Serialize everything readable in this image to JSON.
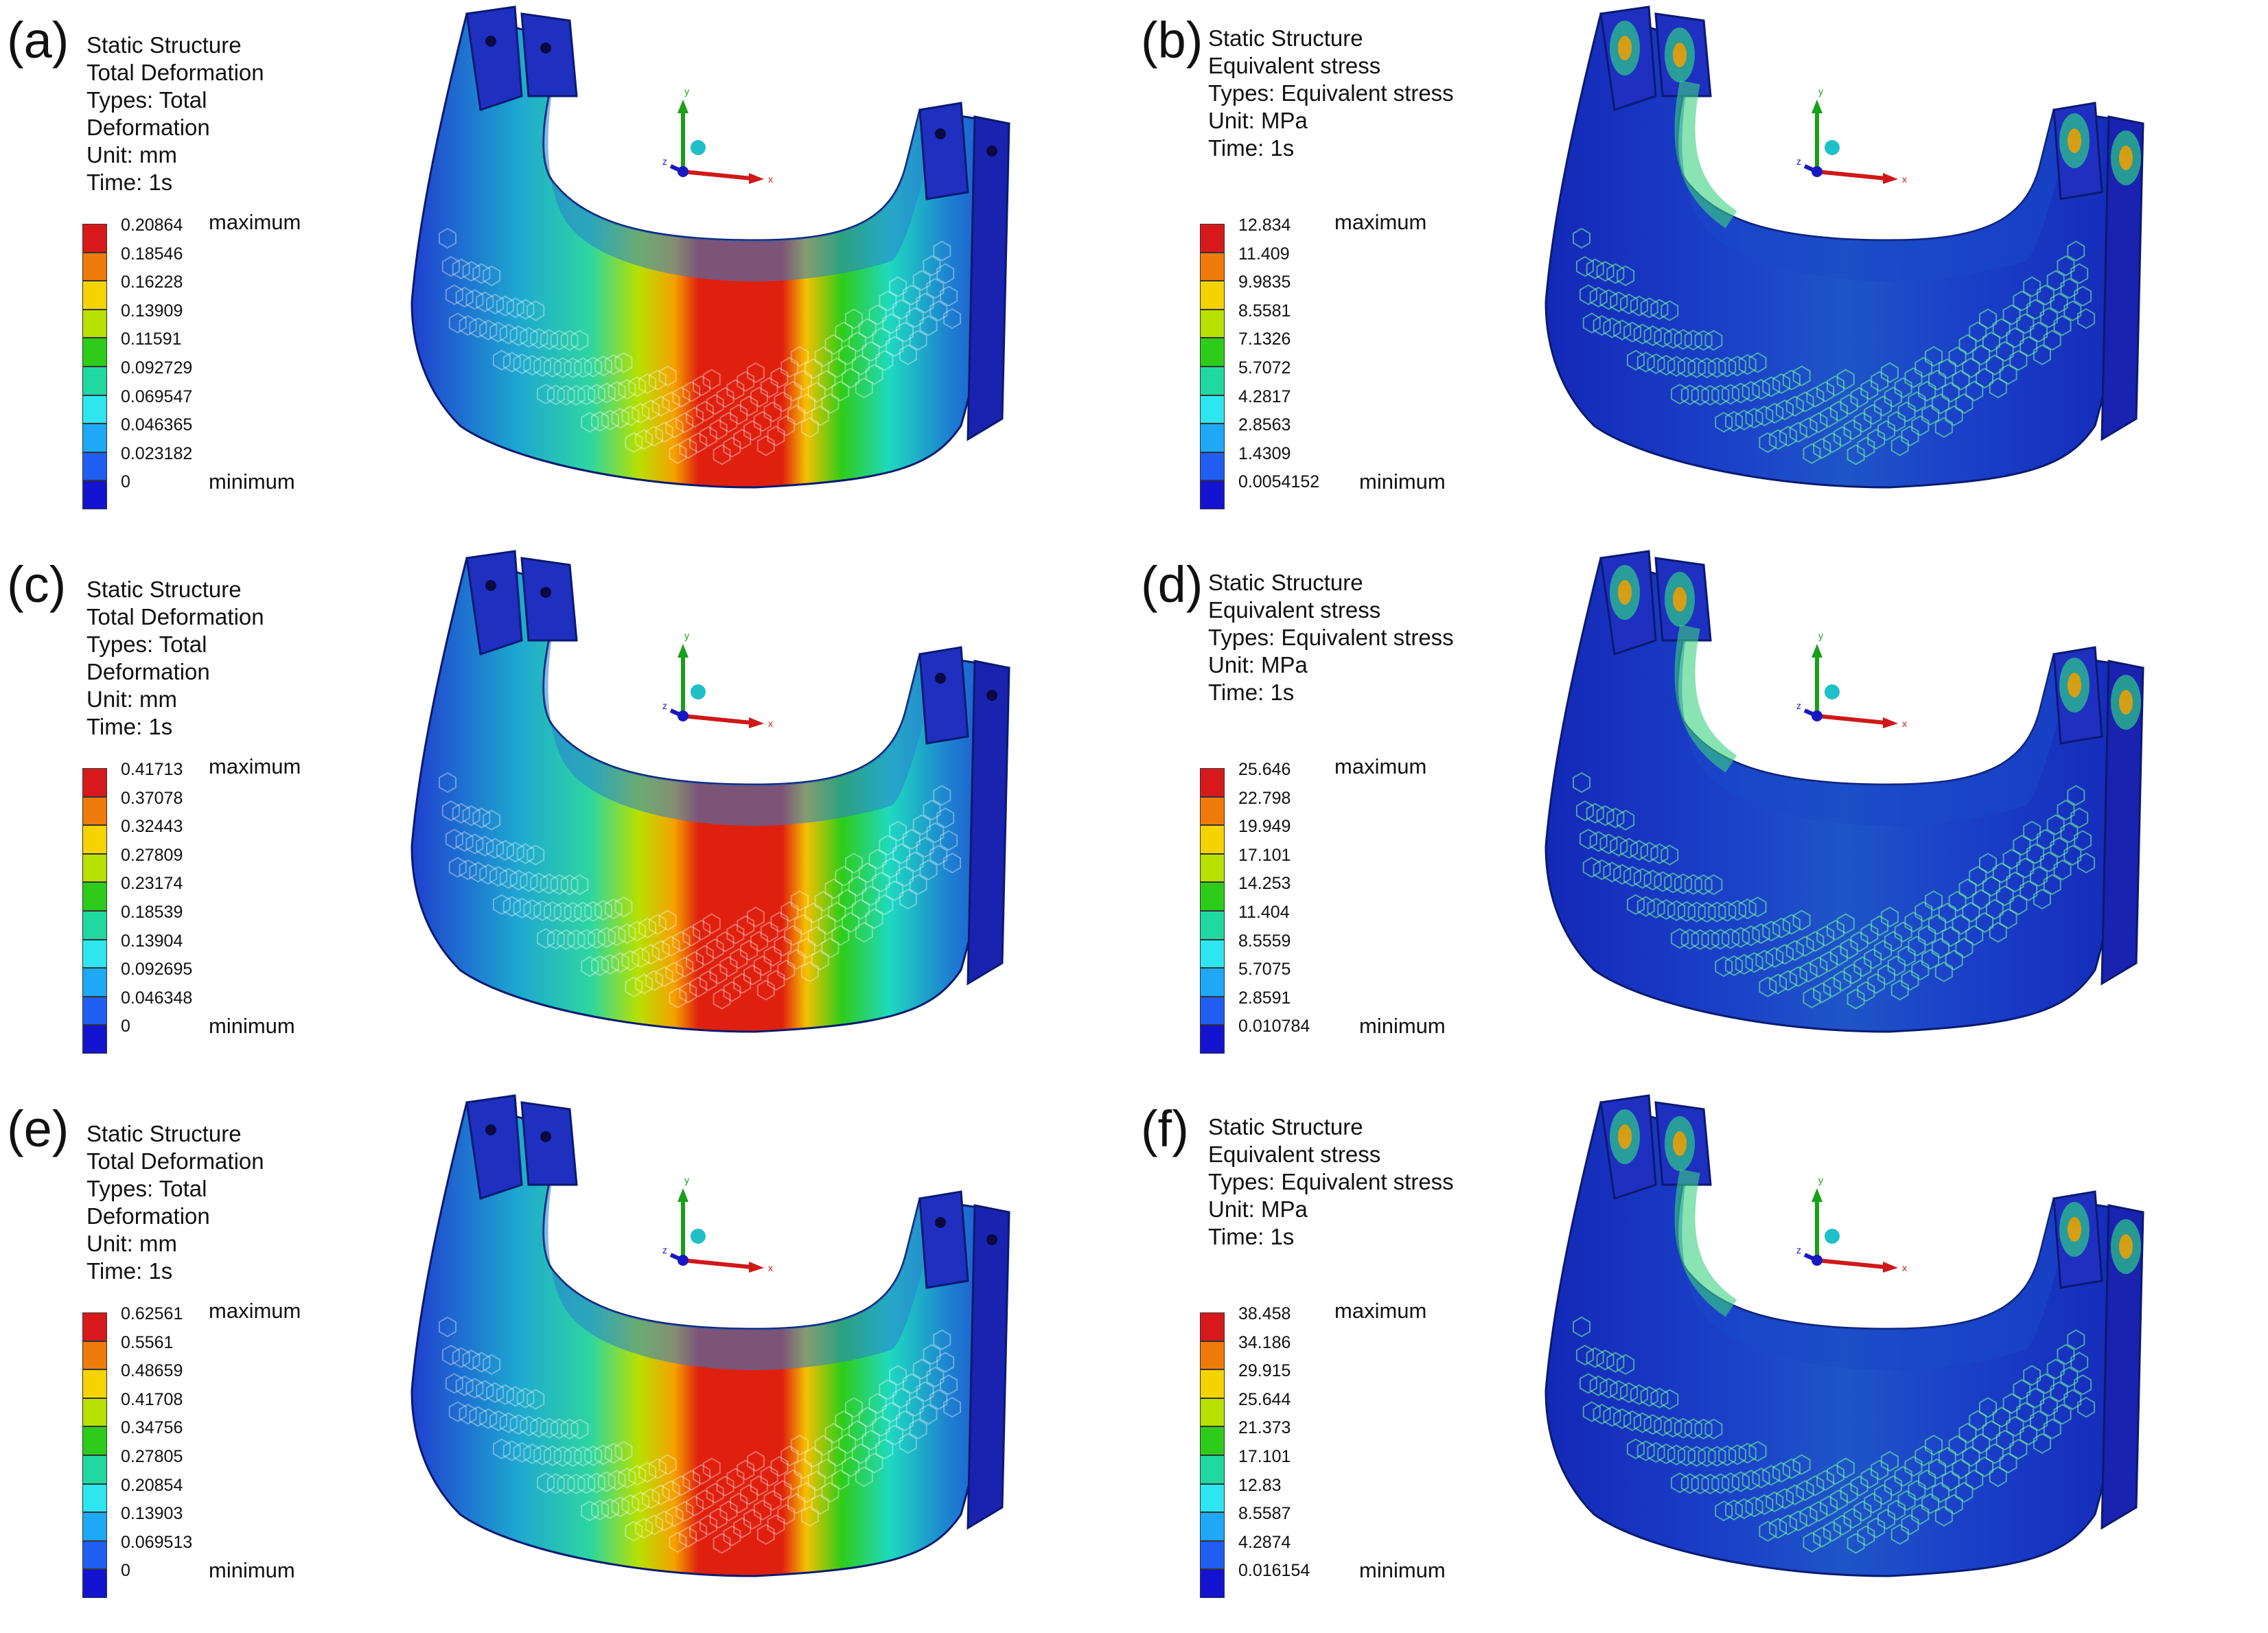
{
  "panels": [
    {
      "letter": "(a)",
      "title_lines": [
        "Static Structure",
        "Total Deformation",
        "Types: Total",
        "Deformation",
        "Unit: mm",
        "Time: 1s"
      ],
      "ticks": [
        "0.20864",
        "0.18546",
        "0.16228",
        "0.13909",
        "0.11591",
        "0.092729",
        "0.069547",
        "0.046365",
        "0.023182",
        "0"
      ],
      "max_label": "maximum",
      "min_label": "minimum",
      "kind": "deformation"
    },
    {
      "letter": "(b)",
      "title_lines": [
        "Static Structure",
        "Equivalent stress",
        "Types: Equivalent stress",
        "Unit: MPa",
        "Time: 1s"
      ],
      "ticks": [
        "12.834",
        "11.409",
        "9.9835",
        "8.5581",
        "7.1326",
        "5.7072",
        "4.2817",
        "2.8563",
        "1.4309",
        "0.0054152"
      ],
      "max_label": "maximum",
      "min_label": "minimum",
      "kind": "stress"
    },
    {
      "letter": "(c)",
      "title_lines": [
        "Static Structure",
        "Total Deformation",
        "Types: Total",
        "Deformation",
        "Unit: mm",
        "Time: 1s"
      ],
      "ticks": [
        "0.41713",
        "0.37078",
        "0.32443",
        "0.27809",
        "0.23174",
        "0.18539",
        "0.13904",
        "0.092695",
        "0.046348",
        "0"
      ],
      "max_label": "maximum",
      "min_label": "minimum",
      "kind": "deformation"
    },
    {
      "letter": "(d)",
      "title_lines": [
        "Static Structure",
        "Equivalent stress",
        "Types: Equivalent stress",
        "Unit: MPa",
        "Time: 1s"
      ],
      "ticks": [
        "25.646",
        "22.798",
        "19.949",
        "17.101",
        "14.253",
        "11.404",
        "8.5559",
        "5.7075",
        "2.8591",
        "0.010784"
      ],
      "max_label": "maximum",
      "min_label": "minimum",
      "kind": "stress"
    },
    {
      "letter": "(e)",
      "title_lines": [
        "Static Structure",
        "Total Deformation",
        "Types: Total",
        "Deformation",
        "Unit: mm",
        "Time: 1s"
      ],
      "ticks": [
        "0.62561",
        "0.5561",
        "0.48659",
        "0.41708",
        "0.34756",
        "0.27805",
        "0.20854",
        "0.13903",
        "0.069513",
        "0"
      ],
      "max_label": "maximum",
      "min_label": "minimum",
      "kind": "deformation"
    },
    {
      "letter": "(f)",
      "title_lines": [
        "Static Structure",
        "Equivalent stress",
        "Types: Equivalent stress",
        "Unit: MPa",
        "Time: 1s"
      ],
      "ticks": [
        "38.458",
        "34.186",
        "29.915",
        "25.644",
        "21.373",
        "17.101",
        "12.83",
        "8.5587",
        "4.2874",
        "0.016154"
      ],
      "max_label": "maximum",
      "min_label": "minimum",
      "kind": "stress"
    }
  ],
  "colormap": [
    "#d7191c",
    "#f07a0a",
    "#f5d300",
    "#b8e000",
    "#2ecc1a",
    "#1fd9a0",
    "#2ee6f0",
    "#1ea8f5",
    "#1f5ef0",
    "#1414d0"
  ],
  "axis_labels": {
    "x": "x",
    "y": "y",
    "z": "z"
  }
}
